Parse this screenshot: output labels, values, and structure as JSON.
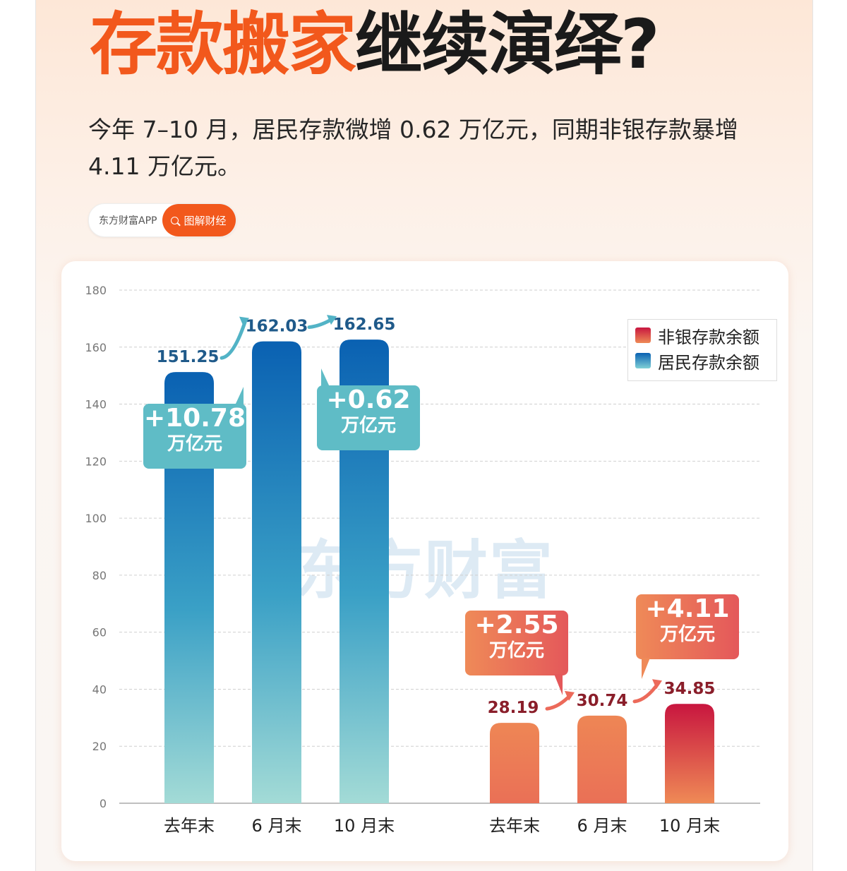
{
  "title": {
    "part1": "存款搬家",
    "part2": "继续演绎?"
  },
  "subtitle": "今年 7–10 月，居民存款微增 0.62 万亿元，同期非银存款暴增 4.11 万亿元。",
  "brand": {
    "name": "东方财富APP",
    "tag": "图解财经",
    "icon": "search-icon"
  },
  "watermark": "东方财富",
  "colors": {
    "accent": "#f2581c",
    "resident_top": "#0a61b2",
    "resident_bottom": "#a3dbd6",
    "nonbank_top": "#c8163f",
    "nonbank_bottom": "#ef8a56",
    "resident_label": "#1f5a8a",
    "nonbank_label": "#8a1e2a"
  },
  "chart_data": {
    "type": "bar",
    "ylim": [
      0,
      180
    ],
    "yticks": [
      0,
      20,
      40,
      60,
      80,
      100,
      120,
      140,
      160,
      180
    ],
    "grid": true,
    "legend_position": "top-right",
    "series": [
      {
        "name": "居民存款余额",
        "categories": [
          "去年末",
          "6 月末",
          "10 月末"
        ],
        "values": [
          151.25,
          162.03,
          162.65
        ]
      },
      {
        "name": "非银存款余额",
        "categories": [
          "去年末",
          "6 月末",
          "10 月末"
        ],
        "values": [
          28.19,
          30.74,
          34.85
        ]
      }
    ],
    "legend": [
      "非银存款余额",
      "居民存款余额"
    ],
    "annotations": [
      {
        "amount": "+10.78",
        "unit": "万亿元"
      },
      {
        "amount": "+0.62",
        "unit": "万亿元"
      },
      {
        "amount": "+2.55",
        "unit": "万亿元"
      },
      {
        "amount": "+4.11",
        "unit": "万亿元"
      }
    ]
  }
}
